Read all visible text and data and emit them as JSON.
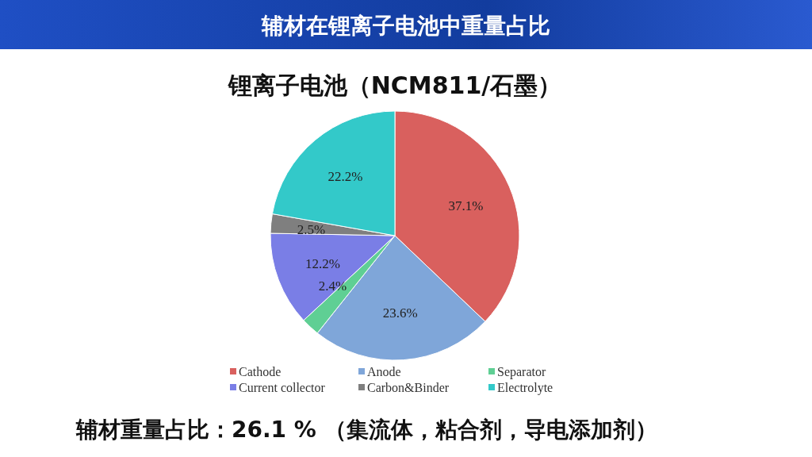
{
  "chart_data": {
    "type": "pie",
    "title": "辅材在锂离子电池中重量占比",
    "subtitle": "锂离子电池（NCM811/石墨）",
    "categories": [
      "Cathode",
      "Anode",
      "Separator",
      "Current collector",
      "Carbon&Binder",
      "Electrolyte"
    ],
    "values": [
      37.1,
      23.6,
      2.4,
      12.2,
      2.5,
      22.2
    ],
    "colors": [
      "#d9605e",
      "#7fa6d9",
      "#5fcf94",
      "#7a7ee6",
      "#7f7f7f",
      "#33c9c9"
    ],
    "value_labels": [
      "37.1%",
      "23.6%",
      "2.4%",
      "12.2%",
      "2.5%",
      "22.2%"
    ],
    "legend": "bottom",
    "annotations": [
      "辅材重量占比：26.1 % （集流体，粘合剂，导电添加剂）"
    ]
  }
}
